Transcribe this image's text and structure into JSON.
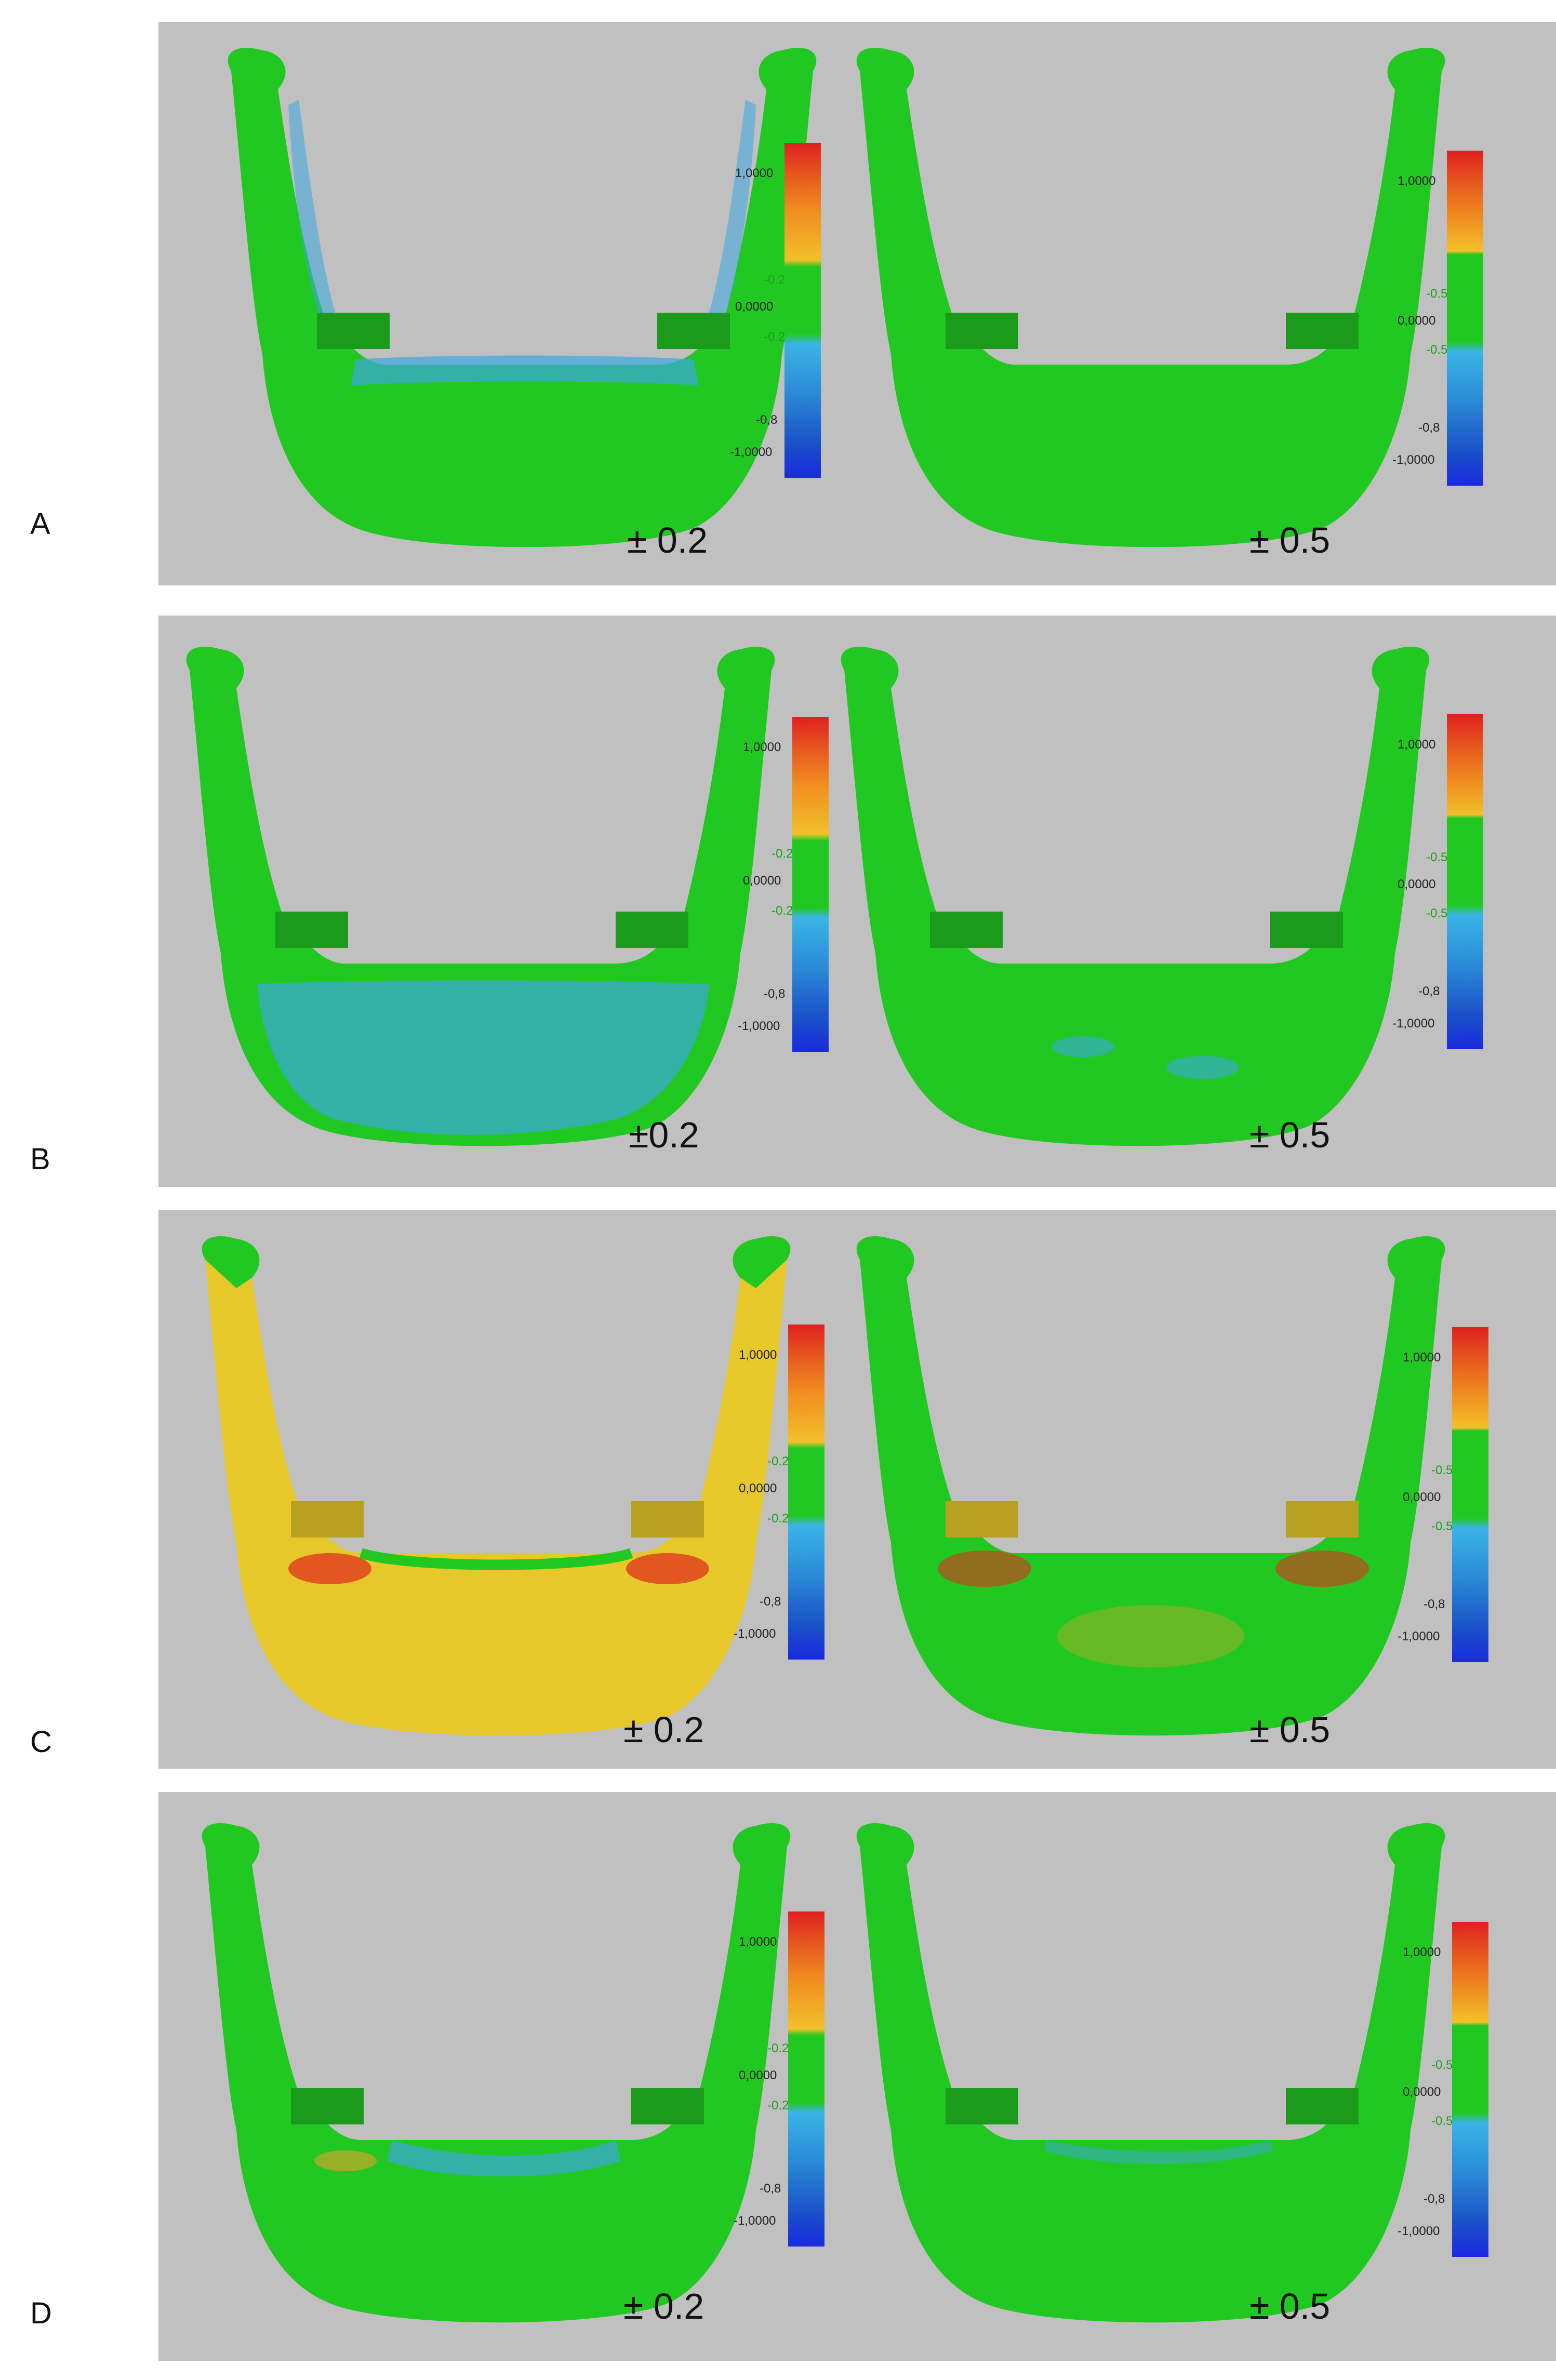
{
  "rows": [
    {
      "label": "A",
      "left_caption": "± 0.2",
      "right_caption": "± 0.5",
      "left_range": "0.2",
      "right_range": "0.5"
    },
    {
      "label": "B",
      "left_caption": "±0.2",
      "right_caption": "± 0.5",
      "left_range": "0.2",
      "right_range": "0.5"
    },
    {
      "label": "C",
      "left_caption": "± 0.2",
      "right_caption": "± 0.5",
      "left_range": "0.2",
      "right_range": "0.5"
    },
    {
      "label": "D",
      "left_caption": "± 0.2",
      "right_caption": "± 0.5",
      "left_range": "0.2",
      "right_range": "0.5"
    }
  ],
  "scale": {
    "max": "1,0000",
    "zero": "0,0000",
    "min": "-1,0000",
    "neg_mid": "-0,8",
    "tol_left_pos": "-0.2",
    "tol_left_neg": "-0.2",
    "tol_right_pos": "-0.5",
    "tol_right_neg": "-0.5"
  },
  "colors": {
    "panel_bg": "#c0c0c0",
    "mandible_green": "#22c822",
    "deviation_blue": "#3aa6e0",
    "deviation_yellow": "#e6c82a",
    "deviation_red": "#e0301e"
  }
}
